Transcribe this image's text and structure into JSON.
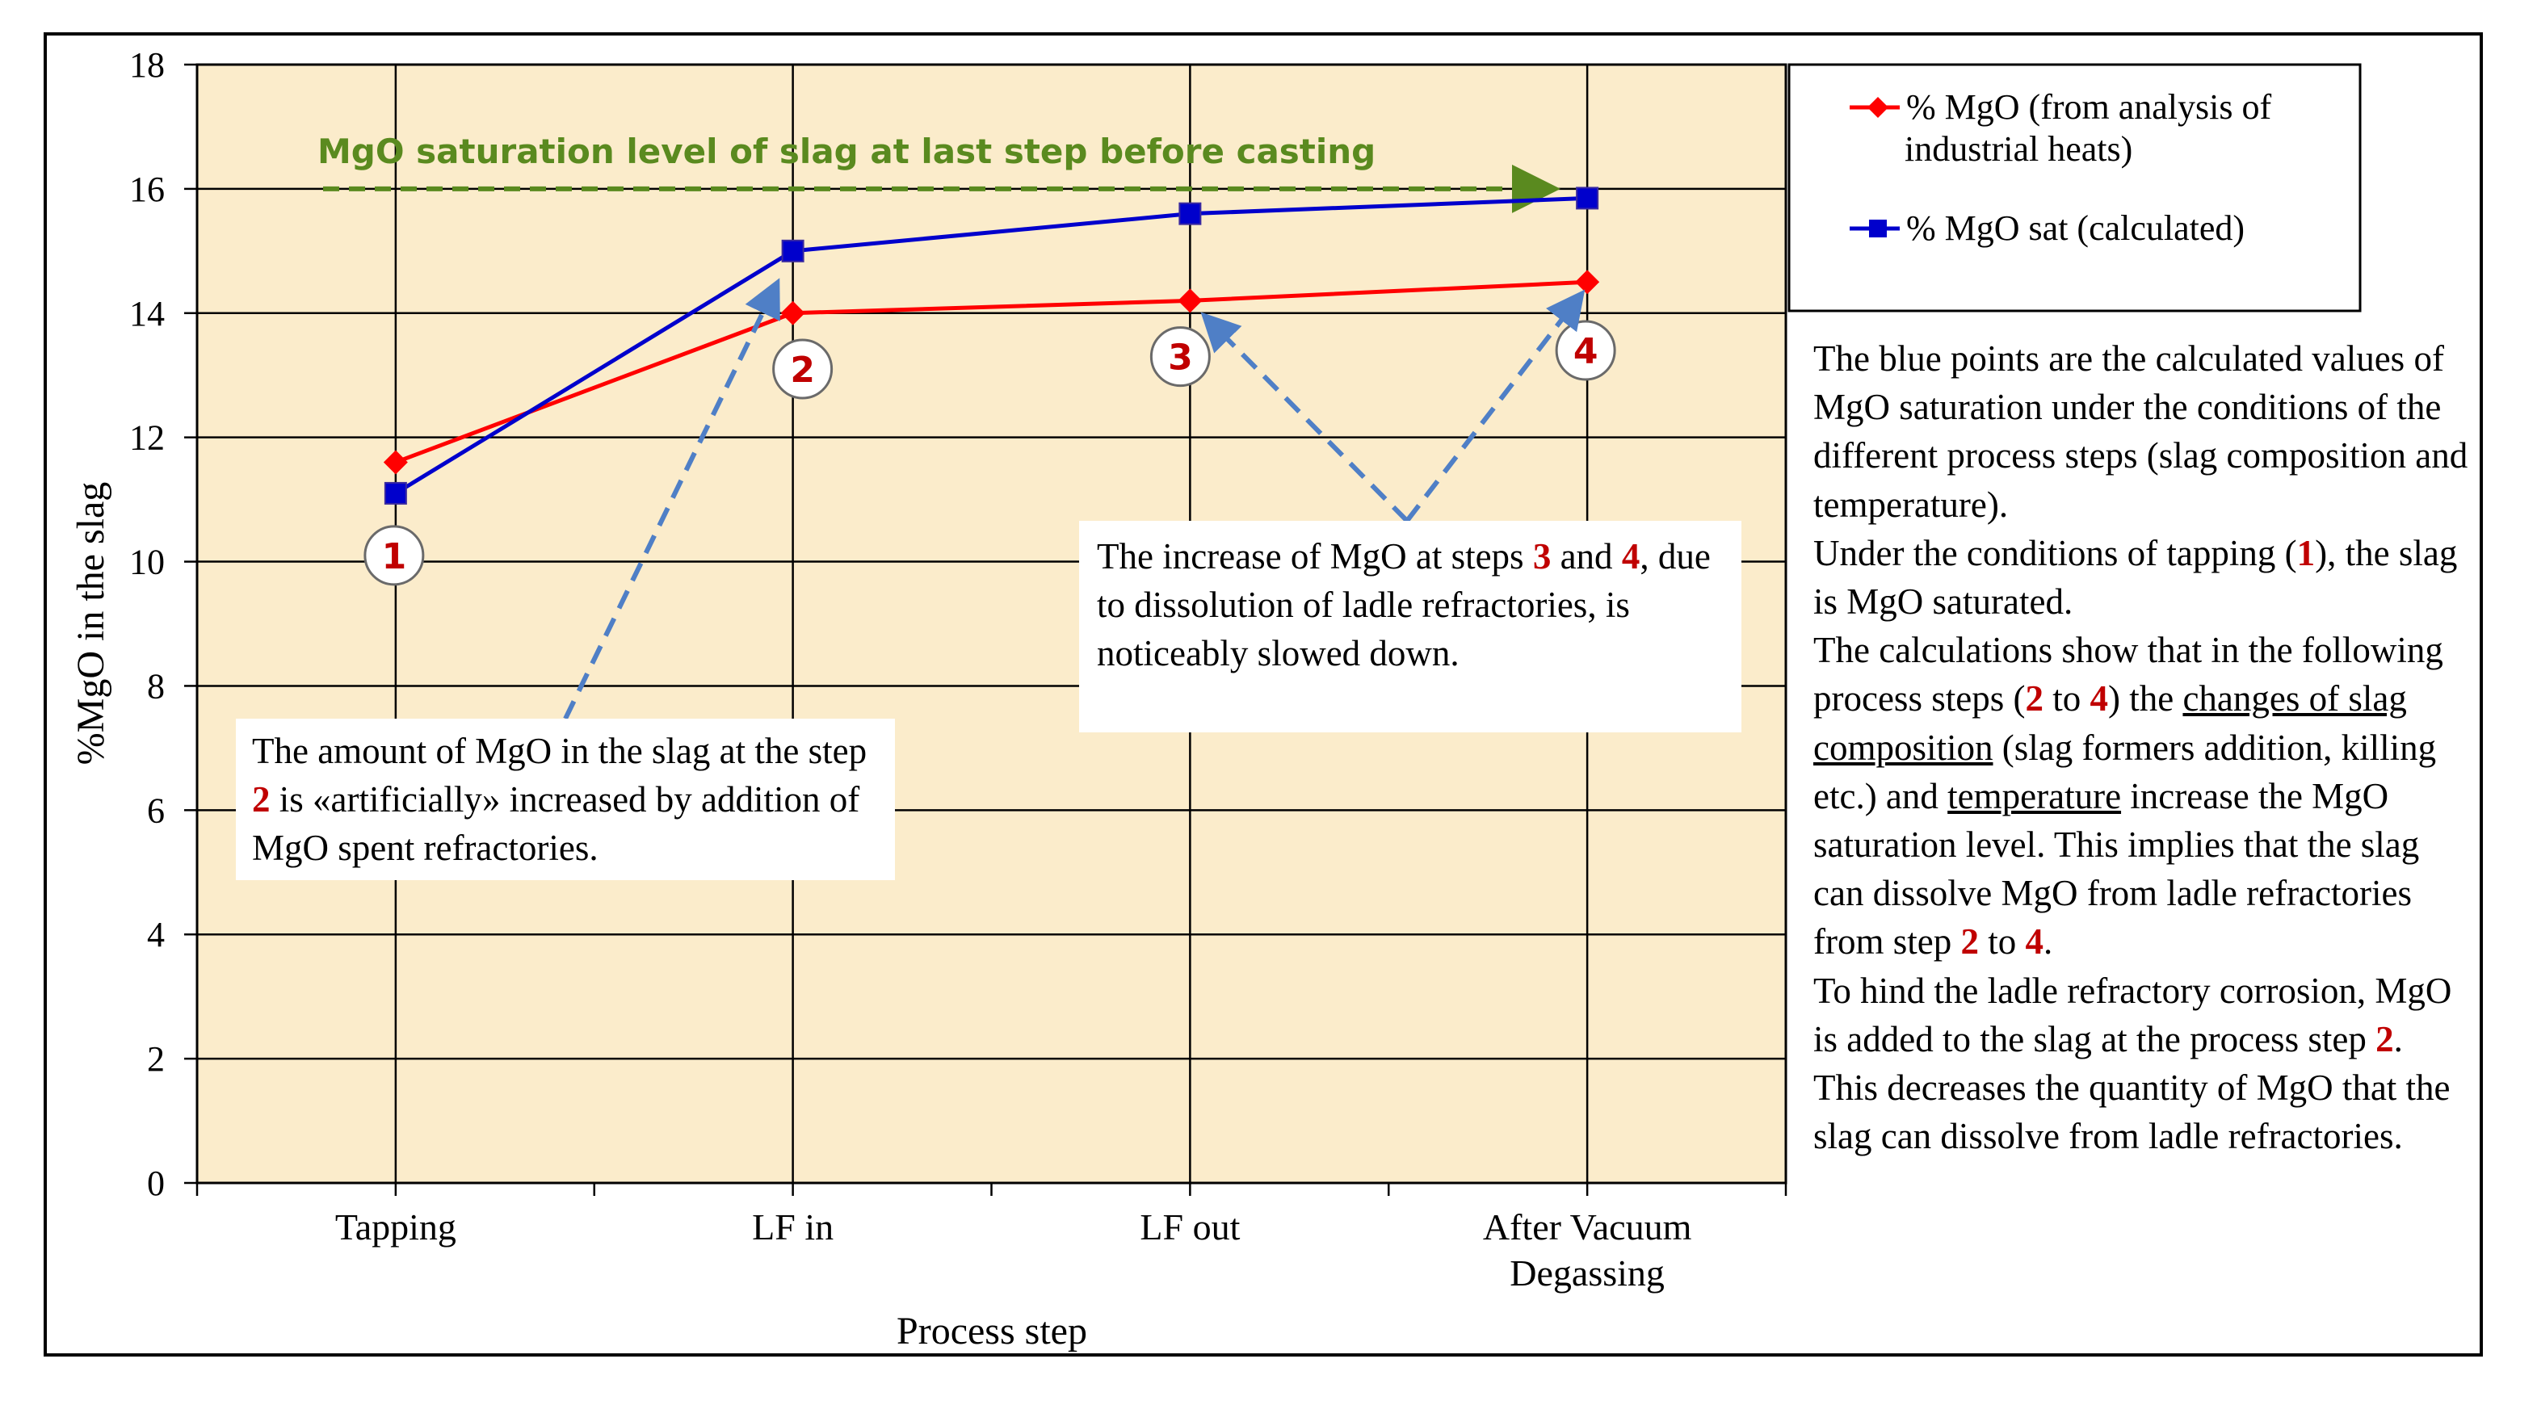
{
  "chart_data": {
    "type": "line",
    "xlabel": "Process step",
    "ylabel": "%MgO in the slag",
    "ylim": [
      0,
      18
    ],
    "yticks": [
      0,
      2,
      4,
      6,
      8,
      10,
      12,
      14,
      16,
      18
    ],
    "grid": true,
    "categories": [
      "Tapping",
      "LF in",
      "LF out",
      "After Vacuum Degassing"
    ],
    "category_lines": [
      [
        "Tapping"
      ],
      [
        "LF in"
      ],
      [
        "LF out"
      ],
      [
        "After Vacuum",
        "Degassing"
      ]
    ],
    "series": [
      {
        "name": "% MgO (from analysis of industrial heats)",
        "legend_lines": [
          "% MgO (from analysis of",
          "industrial heats)"
        ],
        "color": "#ff0000",
        "marker": "diamond",
        "values": [
          11.6,
          14.0,
          14.2,
          14.5
        ]
      },
      {
        "name": "% MgO sat (calculated)",
        "legend_lines": [
          "% MgO sat (calculated)"
        ],
        "color": "#0000cc",
        "marker": "square",
        "values": [
          11.1,
          15.0,
          15.6,
          15.85
        ]
      }
    ],
    "saturation_annotation": {
      "text": "MgO saturation  level of slag at last step before casting",
      "value": 16,
      "color": "#5a8a1f"
    },
    "step_markers": [
      "1",
      "2",
      "3",
      "4"
    ]
  },
  "annotations": {
    "box_left": {
      "t1": "The amount of MgO in the slag at the step ",
      "n1": "2",
      "t2": " is «artificially» increased by addition of MgO spent refractories."
    },
    "box_right": {
      "t1": "The increase  of MgO at steps ",
      "n1": "3",
      "t2": " and ",
      "n2": "4",
      "t3": ", due to dissolution of ladle refractories, is noticeably slowed down."
    }
  },
  "side_text": {
    "p1": "The blue points are the calculated values of MgO saturation under the conditions of the different process steps (slag composition and temperature).",
    "p2a": "Under the conditions of tapping (",
    "p2n": "1",
    "p2b": "), the slag is MgO saturated.",
    "p3a": "The calculations show that in the following process steps (",
    "p3n1": "2",
    "p3b": " to ",
    "p3n2": "4",
    "p3c": ") the ",
    "p3u1": "changes of slag composition",
    "p3d": " (slag formers addition, killing etc.) and ",
    "p3u2": "temperature",
    "p3e": " increase the MgO saturation level. This implies that the slag can dissolve MgO from ladle refractories from step ",
    "p3n3": "2",
    "p3f": " to ",
    "p3n4": "4",
    "p3g": ".",
    "p4a": "To hind the ladle refractory corrosion, MgO is added to the slag at the process step ",
    "p4n": "2",
    "p4b": ". This decreases the quantity of MgO that the slag can dissolve from ladle refractories."
  }
}
